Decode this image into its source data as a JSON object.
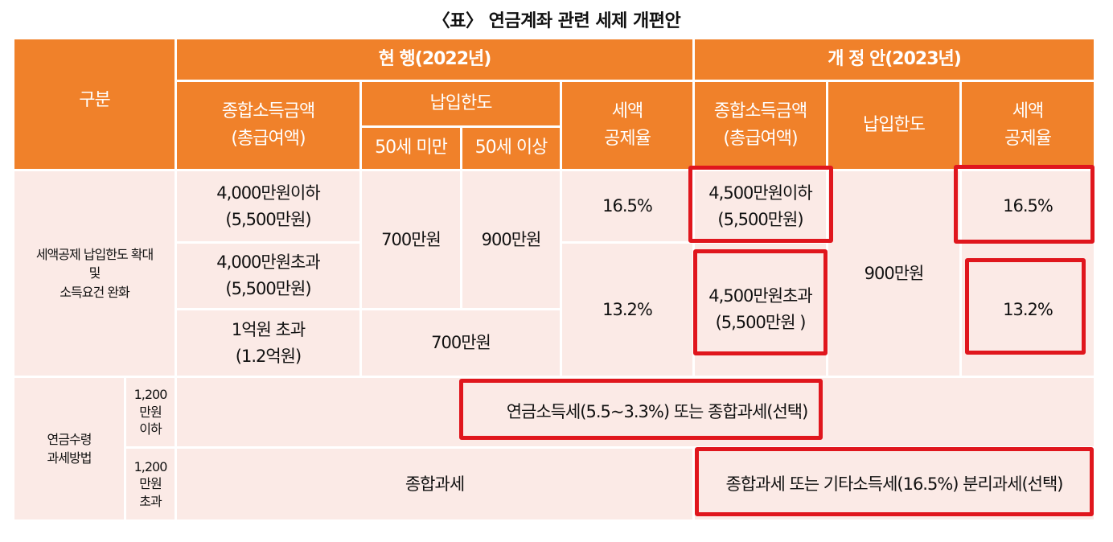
{
  "title": "〈표〉 연금계좌 관련 세제 개편안",
  "header": {
    "category": "구분",
    "current": "현 행(2022년)",
    "proposed": "개 정 안(2023년)",
    "income_total": "종합소득금액\n(총급여액)",
    "limit": "납입한도",
    "under_50": "50세 미만",
    "over_50": "50세 이상",
    "deduction_rate": "세액\n공제율",
    "new_income_total": "종합소득금액\n(총급여액)",
    "new_limit": "납입한도",
    "new_deduction_rate": "세액\n공제율"
  },
  "section1": {
    "label": "세액공제 납입한도 확대\n및\n소득요건 완화",
    "rows": [
      {
        "income": "4,000만원이하\n(5,500만원)"
      },
      {
        "income": "4,000만원초과\n(5,500만원)"
      },
      {
        "income": "1억원 초과\n(1.2억원)"
      }
    ],
    "limit_under50": "700만원",
    "limit_over50": "900만원",
    "limit_high_income": "700만원",
    "rate_low": "16.5%",
    "rate_high": "13.2%",
    "new_income_low": "4,500만원이하\n(5,500만원)",
    "new_income_high": "4,500만원초과\n(5,500만원 )",
    "new_limit": "900만원",
    "new_rate_low": "16.5%",
    "new_rate_high": "13.2%"
  },
  "section2": {
    "label": "연금수령\n과세방법",
    "sub1": "1,200\n만원\n이하",
    "sub2": "1,200\n만원\n초과",
    "row1_text": "연금소득세(5.5~3.3%) 또는 종합과세(선택)",
    "row2_current": "종합과세",
    "row2_proposed": "종합과세 또는 기타소득세(16.5%) 분리과세(선택)"
  },
  "colors": {
    "header_bg": "#f0812a",
    "body_bg": "#fbeae6",
    "highlight": "#e0161d"
  }
}
